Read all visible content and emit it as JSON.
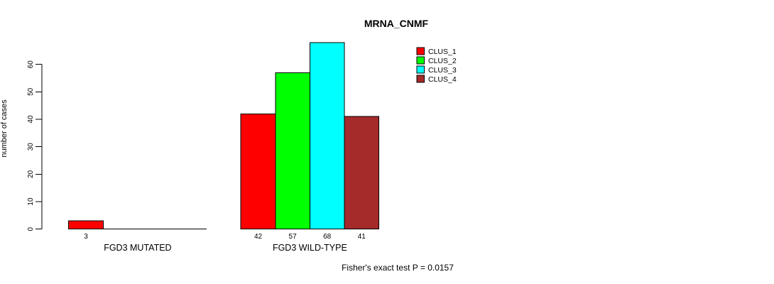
{
  "chart_data": {
    "type": "bar",
    "title": "MRNA_CNMF",
    "xlabel": "",
    "ylabel": "number of cases",
    "ylim": [
      0,
      60
    ],
    "yticks": [
      0,
      10,
      20,
      30,
      40,
      50,
      60
    ],
    "grid": false,
    "legend_position": "top-right",
    "groups": [
      "FGD3 MUTATED",
      "FGD3 WILD-TYPE"
    ],
    "series": [
      {
        "name": "CLUS_1",
        "color": "#FF0000",
        "values": [
          3,
          42
        ]
      },
      {
        "name": "CLUS_2",
        "color": "#00FF00",
        "values": [
          0,
          57
        ]
      },
      {
        "name": "CLUS_3",
        "color": "#00FFFF",
        "values": [
          0,
          68
        ]
      },
      {
        "name": "CLUS_4",
        "color": "#A52A2A",
        "values": [
          0,
          41
        ]
      }
    ],
    "annotation": "Fisher's exact test P = 0.0157"
  }
}
